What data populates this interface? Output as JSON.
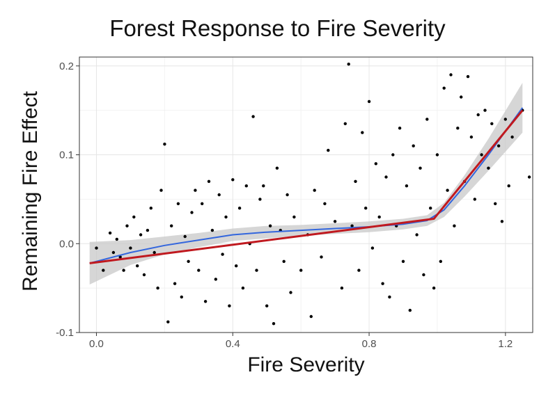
{
  "chart_data": {
    "type": "scatter",
    "title": "Forest Response to Fire Severity",
    "xlabel": "Fire Severity",
    "ylabel": "Remaining Fire Effect",
    "xlim": [
      -0.05,
      1.28
    ],
    "ylim": [
      -0.1,
      0.21
    ],
    "x_ticks": [
      0.0,
      0.4,
      0.8,
      1.2
    ],
    "x_tick_labels": [
      "0.0",
      "0.4",
      "0.8",
      "1.2"
    ],
    "y_ticks": [
      -0.1,
      0.0,
      0.1,
      0.2
    ],
    "y_tick_labels": [
      "-0.1",
      "0.0",
      "0.1",
      "0.2"
    ],
    "grid": true,
    "point_color": "#000000",
    "points": [
      [
        0.0,
        -0.005
      ],
      [
        0.02,
        -0.03
      ],
      [
        0.04,
        0.012
      ],
      [
        0.05,
        -0.01
      ],
      [
        0.06,
        0.005
      ],
      [
        0.07,
        -0.015
      ],
      [
        0.08,
        -0.03
      ],
      [
        0.09,
        0.02
      ],
      [
        0.1,
        -0.005
      ],
      [
        0.11,
        0.03
      ],
      [
        0.12,
        -0.025
      ],
      [
        0.13,
        0.01
      ],
      [
        0.14,
        -0.035
      ],
      [
        0.15,
        0.015
      ],
      [
        0.16,
        0.04
      ],
      [
        0.17,
        -0.01
      ],
      [
        0.18,
        -0.05
      ],
      [
        0.19,
        0.06
      ],
      [
        0.2,
        0.112
      ],
      [
        0.21,
        -0.088
      ],
      [
        0.22,
        0.02
      ],
      [
        0.23,
        -0.045
      ],
      [
        0.24,
        0.045
      ],
      [
        0.25,
        -0.06
      ],
      [
        0.26,
        0.008
      ],
      [
        0.27,
        -0.02
      ],
      [
        0.28,
        0.035
      ],
      [
        0.29,
        0.06
      ],
      [
        0.3,
        -0.03
      ],
      [
        0.31,
        0.045
      ],
      [
        0.32,
        -0.065
      ],
      [
        0.33,
        0.07
      ],
      [
        0.34,
        0.015
      ],
      [
        0.35,
        -0.04
      ],
      [
        0.36,
        0.055
      ],
      [
        0.37,
        -0.012
      ],
      [
        0.38,
        0.03
      ],
      [
        0.39,
        -0.07
      ],
      [
        0.4,
        0.072
      ],
      [
        0.41,
        -0.025
      ],
      [
        0.42,
        0.04
      ],
      [
        0.43,
        -0.05
      ],
      [
        0.44,
        0.065
      ],
      [
        0.45,
        0.0
      ],
      [
        0.46,
        0.143
      ],
      [
        0.47,
        -0.03
      ],
      [
        0.48,
        0.05
      ],
      [
        0.49,
        0.065
      ],
      [
        0.5,
        -0.07
      ],
      [
        0.51,
        0.02
      ],
      [
        0.52,
        -0.09
      ],
      [
        0.53,
        0.085
      ],
      [
        0.54,
        0.015
      ],
      [
        0.55,
        -0.02
      ],
      [
        0.56,
        0.055
      ],
      [
        0.57,
        -0.055
      ],
      [
        0.58,
        0.03
      ],
      [
        0.6,
        -0.03
      ],
      [
        0.62,
        0.01
      ],
      [
        0.63,
        -0.082
      ],
      [
        0.64,
        0.06
      ],
      [
        0.66,
        -0.015
      ],
      [
        0.67,
        0.045
      ],
      [
        0.68,
        0.105
      ],
      [
        0.7,
        0.025
      ],
      [
        0.72,
        -0.05
      ],
      [
        0.73,
        0.135
      ],
      [
        0.74,
        0.202
      ],
      [
        0.75,
        0.02
      ],
      [
        0.76,
        0.07
      ],
      [
        0.77,
        -0.03
      ],
      [
        0.78,
        0.125
      ],
      [
        0.79,
        0.04
      ],
      [
        0.8,
        0.16
      ],
      [
        0.81,
        -0.005
      ],
      [
        0.82,
        0.09
      ],
      [
        0.83,
        0.03
      ],
      [
        0.84,
        -0.045
      ],
      [
        0.85,
        0.075
      ],
      [
        0.86,
        -0.06
      ],
      [
        0.87,
        0.1
      ],
      [
        0.88,
        0.02
      ],
      [
        0.89,
        0.13
      ],
      [
        0.9,
        -0.02
      ],
      [
        0.91,
        0.065
      ],
      [
        0.92,
        -0.075
      ],
      [
        0.93,
        0.11
      ],
      [
        0.94,
        0.01
      ],
      [
        0.95,
        0.085
      ],
      [
        0.96,
        -0.035
      ],
      [
        0.97,
        0.14
      ],
      [
        0.98,
        0.04
      ],
      [
        0.99,
        -0.05
      ],
      [
        1.0,
        0.1
      ],
      [
        1.01,
        -0.02
      ],
      [
        1.02,
        0.175
      ],
      [
        1.03,
        0.06
      ],
      [
        1.04,
        0.19
      ],
      [
        1.05,
        0.02
      ],
      [
        1.06,
        0.13
      ],
      [
        1.07,
        0.165
      ],
      [
        1.08,
        0.07
      ],
      [
        1.09,
        0.188
      ],
      [
        1.1,
        0.12
      ],
      [
        1.11,
        0.05
      ],
      [
        1.12,
        0.145
      ],
      [
        1.13,
        0.1
      ],
      [
        1.14,
        0.15
      ],
      [
        1.15,
        0.085
      ],
      [
        1.16,
        0.135
      ],
      [
        1.17,
        0.045
      ],
      [
        1.18,
        0.11
      ],
      [
        1.19,
        0.025
      ],
      [
        1.2,
        0.14
      ],
      [
        1.21,
        0.065
      ],
      [
        1.22,
        0.12
      ],
      [
        1.25,
        0.15
      ],
      [
        1.27,
        0.075
      ]
    ],
    "series": [
      {
        "name": "",
        "kind": "segmented-fit",
        "color": "#c0191f",
        "x": [
          -0.02,
          0.99,
          1.25
        ],
        "y": [
          -0.022,
          0.028,
          0.15
        ]
      },
      {
        "name": "",
        "kind": "smooth-fit",
        "color": "#3366dd",
        "band_color": "#c8c8c8",
        "x": [
          -0.02,
          0.1,
          0.2,
          0.3,
          0.4,
          0.5,
          0.6,
          0.7,
          0.8,
          0.9,
          0.97,
          1.02,
          1.08,
          1.15,
          1.25
        ],
        "y": [
          -0.022,
          -0.01,
          -0.002,
          0.004,
          0.01,
          0.013,
          0.015,
          0.017,
          0.019,
          0.022,
          0.026,
          0.038,
          0.065,
          0.1,
          0.153
        ],
        "band_half_width": [
          0.024,
          0.014,
          0.01,
          0.008,
          0.007,
          0.007,
          0.006,
          0.006,
          0.006,
          0.006,
          0.006,
          0.008,
          0.012,
          0.018,
          0.028
        ]
      }
    ]
  }
}
